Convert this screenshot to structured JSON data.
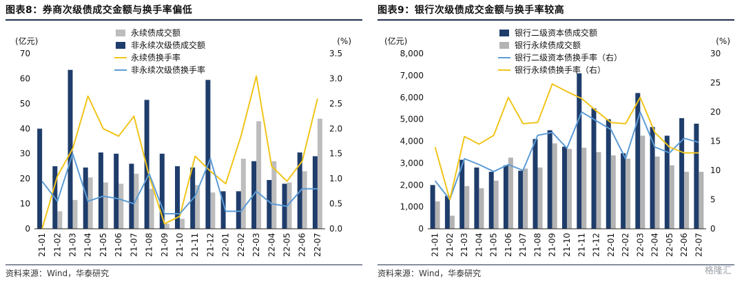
{
  "left": {
    "figure_title": "图表8：券商次级债成交金额与换手率偏低",
    "source": "资料来源：Wind，华泰研究",
    "chart_data": {
      "type": "bar",
      "categories": [
        "21-01",
        "21-02",
        "21-03",
        "21-04",
        "21-05",
        "21-06",
        "21-07",
        "21-08",
        "21-09",
        "21-10",
        "21-11",
        "21-12",
        "22-01",
        "22-02",
        "22-03",
        "22-04",
        "22-05",
        "22-06",
        "22-07"
      ],
      "left_unit": "(亿元)",
      "right_unit": "(%)",
      "ylim": [
        0,
        70
      ],
      "yticks": [
        0,
        10,
        20,
        30,
        40,
        50,
        60,
        70
      ],
      "y2lim": [
        0,
        3.5
      ],
      "y2ticks": [
        "0.0",
        "0.5",
        "1.0",
        "1.5",
        "2.0",
        "2.5",
        "3.0",
        "3.5"
      ],
      "series": [
        {
          "name": "永续债成交额",
          "type": "bar",
          "axis": "left",
          "color": "#bdbdbd",
          "values": [
            0,
            7,
            11.5,
            20.5,
            18.5,
            18,
            22,
            16,
            2,
            4,
            17.5,
            14.5,
            0,
            28,
            43,
            27,
            18.5,
            23,
            44
          ]
        },
        {
          "name": "非永续次级债成交额",
          "type": "bar",
          "axis": "left",
          "color": "#1f3d6b",
          "values": [
            40,
            25,
            63.5,
            24.5,
            30.5,
            30,
            26,
            51.5,
            30,
            25,
            24.5,
            59.5,
            15,
            15,
            27,
            19.5,
            18,
            30.5,
            29
          ]
        },
        {
          "name": "永续债换手率",
          "type": "line",
          "axis": "right",
          "color": "#f0c419",
          "values": [
            0.0,
            1.05,
            1.6,
            2.65,
            2.0,
            1.85,
            2.25,
            1.05,
            0.1,
            0.25,
            1.45,
            1.15,
            0.9,
            1.85,
            3.05,
            1.25,
            0.95,
            1.35,
            2.6
          ]
        },
        {
          "name": "非永续次级债换手率",
          "type": "line",
          "axis": "right",
          "color": "#5b9bd5",
          "values": [
            0.95,
            0.55,
            1.5,
            0.55,
            0.65,
            0.6,
            0.5,
            1.1,
            0.3,
            0.3,
            0.65,
            1.4,
            0.35,
            0.35,
            0.75,
            0.5,
            0.45,
            0.8,
            0.8
          ]
        }
      ]
    }
  },
  "right": {
    "figure_title": "图表9：银行次级债成交金额与换手率较高",
    "source": "资料来源：Wind，华泰研究",
    "watermark": "格隆汇",
    "chart_data": {
      "type": "bar",
      "categories": [
        "21-01",
        "21-02",
        "21-03",
        "21-04",
        "21-05",
        "21-06",
        "21-07",
        "21-08",
        "21-09",
        "21-10",
        "21-11",
        "21-12",
        "22-01",
        "22-02",
        "22-03",
        "22-04",
        "22-05",
        "22-06",
        "22-07"
      ],
      "left_unit": "(亿元)",
      "right_unit": "(%)",
      "ylim": [
        0,
        8000
      ],
      "yticks": [
        "0",
        "1,000",
        "2,000",
        "3,000",
        "4,000",
        "5,000",
        "6,000",
        "7,000",
        "8,000"
      ],
      "y2lim": [
        0,
        30
      ],
      "y2ticks": [
        "0",
        "5",
        "10",
        "15",
        "20",
        "25",
        "30"
      ],
      "series": [
        {
          "name": "银行二级资本债成交额",
          "type": "bar",
          "axis": "left",
          "color": "#1f3d6b",
          "values": [
            2000,
            1500,
            3150,
            2800,
            2600,
            2900,
            2650,
            4100,
            4500,
            3750,
            7100,
            5500,
            5000,
            3450,
            6200,
            4650,
            4250,
            5050,
            4800
          ]
        },
        {
          "name": "银行永续债成交额",
          "type": "bar",
          "axis": "left",
          "color": "#b3b3b3",
          "values": [
            1250,
            600,
            1950,
            1850,
            2200,
            3250,
            2750,
            2800,
            3900,
            3650,
            3700,
            3500,
            3350,
            3200,
            4250,
            3300,
            2900,
            2600,
            2600
          ]
        },
        {
          "name": "银行二级资本债换手率（右）",
          "type": "line",
          "axis": "right",
          "color": "#5b9bd5",
          "values": [
            8.2,
            5.0,
            12.0,
            11.0,
            9.8,
            11.0,
            10.0,
            16.0,
            16.5,
            13.8,
            20.0,
            18.5,
            17.0,
            12.0,
            20.0,
            14.0,
            13.0,
            15.5,
            14.8
          ]
        },
        {
          "name": "银行永续债换手率（右）",
          "type": "line",
          "axis": "right",
          "color": "#f0c419",
          "values": [
            14.0,
            5.0,
            15.8,
            14.5,
            16.0,
            22.5,
            18.0,
            18.2,
            24.8,
            23.5,
            22.3,
            20.2,
            18.2,
            18.0,
            22.5,
            16.5,
            14.0,
            13.0,
            13.0
          ]
        }
      ]
    }
  }
}
